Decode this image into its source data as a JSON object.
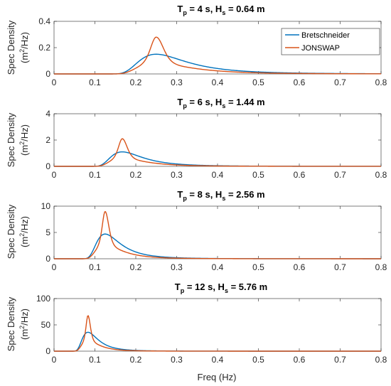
{
  "figure": {
    "xlabel": "Freq (Hz)",
    "ylabel_line1": "Spec Density",
    "ylabel_unit_base": "(m",
    "ylabel_unit_sup": "2",
    "ylabel_unit_tail": "/Hz)",
    "legend": {
      "placement": "top-right of first panel",
      "entries": [
        "Bretschneider",
        "JONSWAP"
      ]
    },
    "colors": {
      "bretschneider": "#0072BD",
      "jonswap": "#D95319",
      "overlap_tint": "#8B7A2B"
    }
  },
  "chart_data": [
    {
      "type": "line",
      "title": {
        "t": "T",
        "t_sub": "p",
        "t_val": " = 4 s, H",
        "h_sub": "s",
        "h_val": " = 0.64 m"
      },
      "Tp": 4,
      "Hs": 0.64,
      "xlim": [
        0,
        0.8
      ],
      "ylim": [
        0,
        0.4
      ],
      "xticks": [
        "0",
        "0.1",
        "0.2",
        "0.3",
        "0.4",
        "0.5",
        "0.6",
        "0.7",
        "0.8"
      ],
      "yticks": [
        "0",
        "0.2",
        "0.4"
      ],
      "series": [
        {
          "name": "Bretschneider",
          "peak_freq": 0.25,
          "peak_value": 0.15
        },
        {
          "name": "JONSWAP",
          "peak_freq": 0.25,
          "peak_value": 0.28
        }
      ]
    },
    {
      "type": "line",
      "title": {
        "t": "T",
        "t_sub": "p",
        "t_val": " = 6 s, H",
        "h_sub": "s",
        "h_val": " = 1.44 m"
      },
      "Tp": 6,
      "Hs": 1.44,
      "xlim": [
        0,
        0.8
      ],
      "ylim": [
        0,
        4
      ],
      "xticks": [
        "0",
        "0.1",
        "0.2",
        "0.3",
        "0.4",
        "0.5",
        "0.6",
        "0.7",
        "0.8"
      ],
      "yticks": [
        "0",
        "2",
        "4"
      ],
      "series": [
        {
          "name": "Bretschneider",
          "peak_freq": 0.167,
          "peak_value": 1.1
        },
        {
          "name": "JONSWAP",
          "peak_freq": 0.167,
          "peak_value": 2.1
        }
      ]
    },
    {
      "type": "line",
      "title": {
        "t": "T",
        "t_sub": "p",
        "t_val": " = 8 s, H",
        "h_sub": "s",
        "h_val": " = 2.56 m"
      },
      "Tp": 8,
      "Hs": 2.56,
      "xlim": [
        0,
        0.8
      ],
      "ylim": [
        0,
        10
      ],
      "xticks": [
        "0",
        "0.1",
        "0.2",
        "0.3",
        "0.4",
        "0.5",
        "0.6",
        "0.7",
        "0.8"
      ],
      "yticks": [
        "0",
        "5",
        "10"
      ],
      "series": [
        {
          "name": "Bretschneider",
          "peak_freq": 0.125,
          "peak_value": 4.7
        },
        {
          "name": "JONSWAP",
          "peak_freq": 0.125,
          "peak_value": 9.0
        }
      ]
    },
    {
      "type": "line",
      "title": {
        "t": "T",
        "t_sub": "p",
        "t_val": " = 12 s, H",
        "h_sub": "s",
        "h_val": " = 5.76 m"
      },
      "Tp": 12,
      "Hs": 5.76,
      "xlim": [
        0,
        0.8
      ],
      "ylim": [
        0,
        100
      ],
      "xticks": [
        "0",
        "0.1",
        "0.2",
        "0.3",
        "0.4",
        "0.5",
        "0.6",
        "0.7",
        "0.8"
      ],
      "yticks": [
        "0",
        "50",
        "100"
      ],
      "series": [
        {
          "name": "Bretschneider",
          "peak_freq": 0.083,
          "peak_value": 36
        },
        {
          "name": "JONSWAP",
          "peak_freq": 0.083,
          "peak_value": 68
        }
      ]
    }
  ]
}
